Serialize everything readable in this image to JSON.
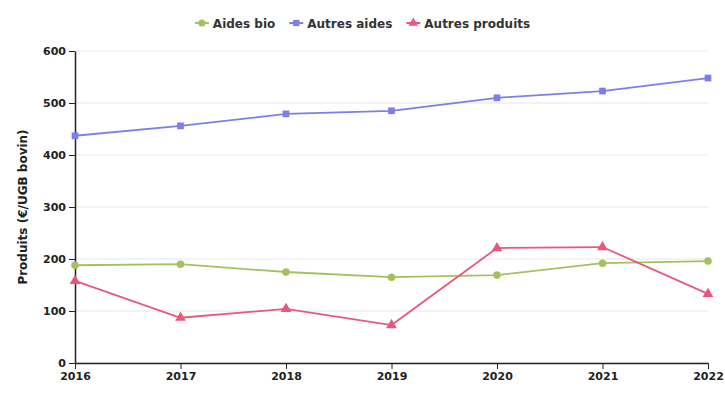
{
  "chart_data": {
    "type": "line",
    "y_label": "Produits (€/UGB bovin)",
    "x": [
      2016,
      2017,
      2018,
      2019,
      2020,
      2021,
      2022
    ],
    "xlim": [
      2016,
      2022
    ],
    "xticks": [
      2016,
      2017,
      2018,
      2019,
      2020,
      2021,
      2022
    ],
    "ylim": [
      0,
      600
    ],
    "yticks": [
      0,
      100,
      200,
      300,
      400,
      500,
      600
    ],
    "grid": true,
    "legend": "top",
    "series": [
      {
        "name": "Aides bio",
        "color": "#a3c15f",
        "marker": "circle",
        "values": [
          188,
          190,
          175,
          165,
          169,
          192,
          196
        ]
      },
      {
        "name": "Autres aides",
        "color": "#7b7fe6",
        "marker": "square",
        "values": [
          437,
          456,
          479,
          485,
          510,
          523,
          548
        ]
      },
      {
        "name": "Autres produits",
        "color": "#e8577e",
        "marker": "triangle",
        "values": [
          158,
          87,
          104,
          73,
          221,
          223,
          133
        ]
      }
    ]
  }
}
